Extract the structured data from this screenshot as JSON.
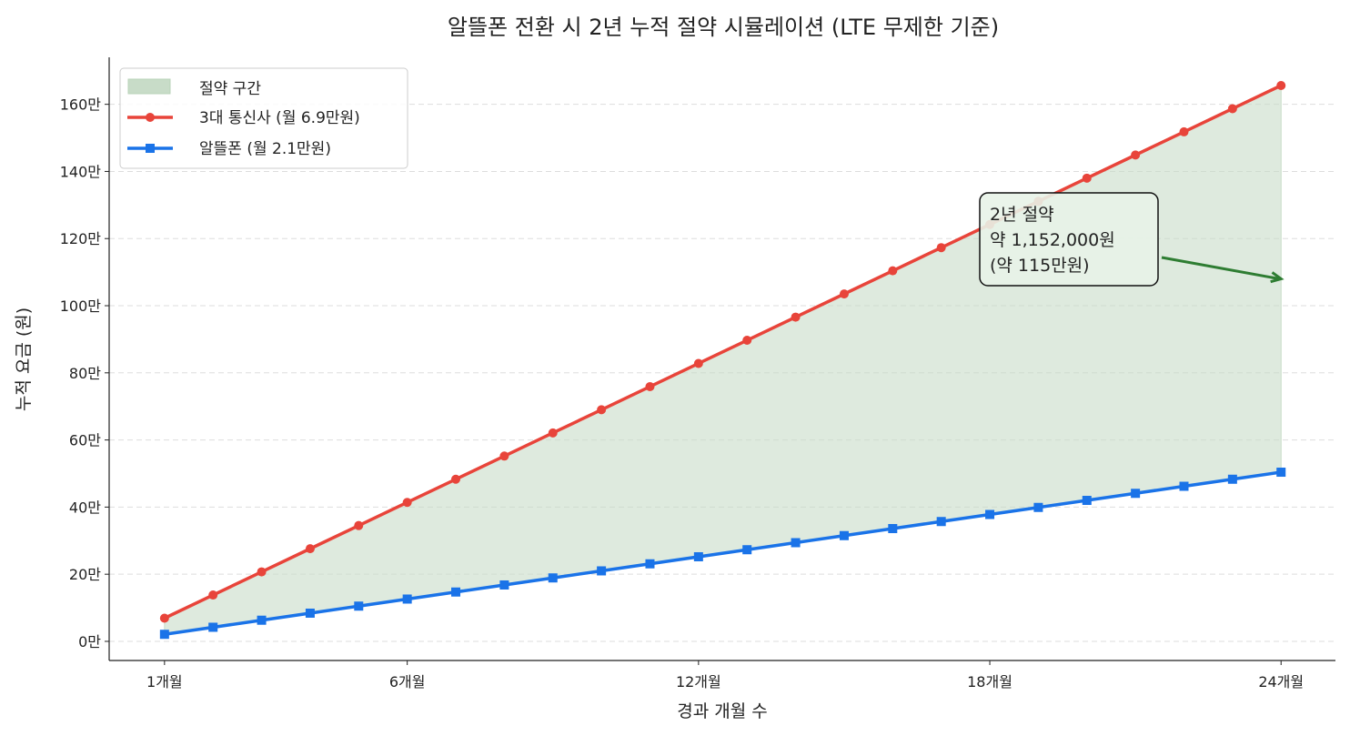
{
  "chart_data": {
    "type": "line",
    "title": "알뜰폰 전환 시 2년 누적 절약 시뮬레이션 (LTE 무제한 기준)",
    "xlabel": "경과 개월 수",
    "ylabel": "누적 요금 (원)",
    "x": [
      1,
      2,
      3,
      4,
      5,
      6,
      7,
      8,
      9,
      10,
      11,
      12,
      13,
      14,
      15,
      16,
      17,
      18,
      19,
      20,
      21,
      22,
      23,
      24
    ],
    "xticks": [
      1,
      6,
      12,
      18,
      24
    ],
    "xtick_labels": [
      "1개월",
      "6개월",
      "12개월",
      "18개월",
      "24개월"
    ],
    "xlim": [
      -0.14,
      25.12
    ],
    "yticks": [
      0,
      20,
      40,
      60,
      80,
      100,
      120,
      140,
      160
    ],
    "ytick_labels": [
      "0만",
      "20만",
      "40만",
      "60만",
      "80만",
      "100만",
      "120만",
      "140만",
      "160만"
    ],
    "ylim": [
      -5.7,
      174
    ],
    "y_unit": "만원",
    "grid": "y-dashed",
    "legend_position": "top-left",
    "fill_legend": "절약 구간",
    "fill_color": "#c8dcc8",
    "series": [
      {
        "name": "3대 통신사 (월 6.9만원)",
        "color": "#e8443a",
        "marker": "circle",
        "values": [
          6.9,
          13.8,
          20.7,
          27.6,
          34.5,
          41.4,
          48.3,
          55.2,
          62.1,
          69.0,
          75.9,
          82.8,
          89.7,
          96.6,
          103.5,
          110.4,
          117.3,
          124.2,
          131.1,
          138.0,
          144.9,
          151.8,
          158.7,
          165.6
        ]
      },
      {
        "name": "알뜰폰 (월 2.1만원)",
        "color": "#1a73e8",
        "marker": "square",
        "values": [
          2.1,
          4.2,
          6.3,
          8.4,
          10.5,
          12.6,
          14.7,
          16.8,
          18.9,
          21.0,
          23.1,
          25.2,
          27.3,
          29.4,
          31.5,
          33.6,
          35.7,
          37.8,
          39.9,
          42.0,
          44.1,
          46.2,
          48.3,
          50.4
        ]
      }
    ],
    "annotation": {
      "lines": [
        "2년 절약",
        "약 1,152,000원",
        "(약 115만원)"
      ],
      "color": "#2e7d32",
      "arrow_target": {
        "x": 24,
        "y": 108
      }
    }
  }
}
